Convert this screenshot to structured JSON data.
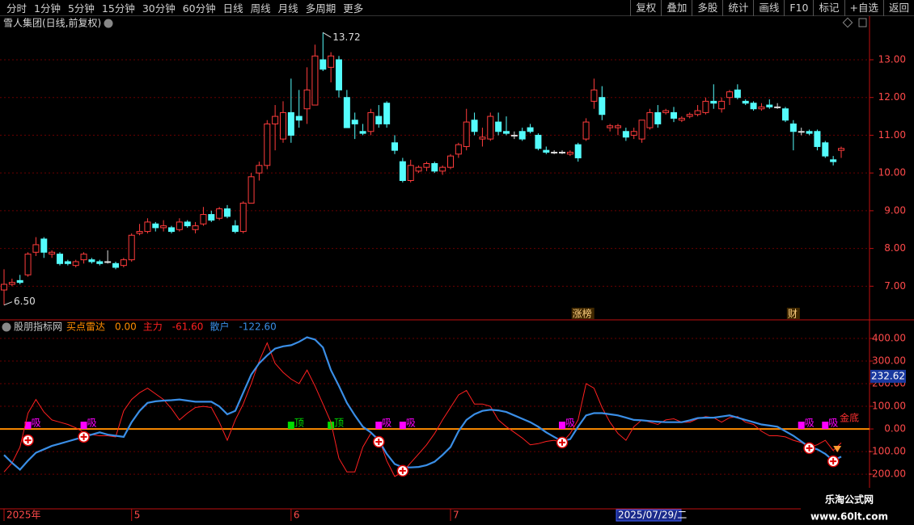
{
  "toolbar": {
    "left": [
      "分时",
      "1分钟",
      "5分钟",
      "15分钟",
      "30分钟",
      "60分钟",
      "日线",
      "周线",
      "月线",
      "多周期",
      "更多"
    ],
    "right": [
      "复权",
      "叠加",
      "多股",
      "统计",
      "画线",
      "F10",
      "标记",
      "+自选",
      "返回"
    ]
  },
  "watermark": {
    "title": "乐淘公式网",
    "url": "www.60lt.com"
  },
  "chart_data": [
    {
      "type": "candlestick",
      "title": "雪人集团(日线,前复权)",
      "up_color": "#ff3c3c",
      "down_color": "#54fcfc",
      "open": [
        6.9,
        7.05,
        7.15,
        7.3,
        7.9,
        8.25,
        7.85,
        7.85,
        7.65,
        7.55,
        7.7,
        7.7,
        7.65,
        7.65,
        7.6,
        7.55,
        7.7,
        8.4,
        8.45,
        8.65,
        8.55,
        8.55,
        8.5,
        8.7,
        8.5,
        8.65,
        8.9,
        8.8,
        9.05,
        8.6,
        8.45,
        9.2,
        10.0,
        10.2,
        11.3,
        10.9,
        11.6,
        11.5,
        11.7,
        11.8,
        13.0,
        12.8,
        13.0,
        12.0,
        11.4,
        11.1,
        11.1,
        11.5,
        11.85,
        10.8,
        10.3,
        9.8,
        10.05,
        10.15,
        10.25,
        10.05,
        10.15,
        10.5,
        10.7,
        11.4,
        10.9,
        10.9,
        11.35,
        11.1,
        11.0,
        11.1,
        11.2,
        11.0,
        10.6,
        10.55,
        10.55,
        10.5,
        10.75,
        10.9,
        11.9,
        12.0,
        11.2,
        11.2,
        11.1,
        11.0,
        10.9,
        11.2,
        11.6,
        11.6,
        11.6,
        11.4,
        11.5,
        11.55,
        11.6,
        11.9,
        11.7,
        12.0,
        12.2,
        11.9,
        11.85,
        11.7,
        11.8,
        11.75,
        11.7,
        11.3,
        11.1,
        11.1,
        11.1,
        10.8,
        10.35,
        10.6
      ],
      "high": [
        7.45,
        7.2,
        7.3,
        7.9,
        8.3,
        8.3,
        7.95,
        7.9,
        7.7,
        7.7,
        7.9,
        7.75,
        7.7,
        7.95,
        7.65,
        7.75,
        8.4,
        8.65,
        8.8,
        8.7,
        8.75,
        8.6,
        8.8,
        8.75,
        8.7,
        9.1,
        9.0,
        9.1,
        9.15,
        8.75,
        9.25,
        10.0,
        10.3,
        11.4,
        11.8,
        11.9,
        12.5,
        12.2,
        12.8,
        13.4,
        13.72,
        13.2,
        13.1,
        12.2,
        11.6,
        11.3,
        11.7,
        11.8,
        11.9,
        11.0,
        10.4,
        10.35,
        10.2,
        10.3,
        10.3,
        10.2,
        10.5,
        10.8,
        11.7,
        11.6,
        11.2,
        11.6,
        11.6,
        11.5,
        11.1,
        11.2,
        11.3,
        11.05,
        10.7,
        10.6,
        10.6,
        10.6,
        10.8,
        11.45,
        12.5,
        12.3,
        11.3,
        11.3,
        11.2,
        11.2,
        11.4,
        11.7,
        11.8,
        11.7,
        11.75,
        11.5,
        11.6,
        11.8,
        12.0,
        12.35,
        12.0,
        12.2,
        12.35,
        11.95,
        11.9,
        11.85,
        11.95,
        11.85,
        11.75,
        11.4,
        11.2,
        11.15,
        11.15,
        10.85,
        10.45,
        10.7
      ],
      "low": [
        6.5,
        7.0,
        7.05,
        7.25,
        7.8,
        7.75,
        7.75,
        7.55,
        7.55,
        7.5,
        7.6,
        7.6,
        7.55,
        7.6,
        7.45,
        7.5,
        7.65,
        8.35,
        8.4,
        8.45,
        8.45,
        8.4,
        8.45,
        8.55,
        8.4,
        8.6,
        8.7,
        8.75,
        8.8,
        8.4,
        8.4,
        9.2,
        9.8,
        10.1,
        10.6,
        10.8,
        10.8,
        11.2,
        11.3,
        11.8,
        12.7,
        12.4,
        12.0,
        11.2,
        10.9,
        11.0,
        11.0,
        11.2,
        11.2,
        10.5,
        9.75,
        9.75,
        10.0,
        10.05,
        10.0,
        9.95,
        10.1,
        10.4,
        10.6,
        11.0,
        10.7,
        10.85,
        11.0,
        11.0,
        10.9,
        10.85,
        11.05,
        10.6,
        10.5,
        10.5,
        10.5,
        10.45,
        10.3,
        10.85,
        11.7,
        11.4,
        11.1,
        11.0,
        10.85,
        10.9,
        10.8,
        11.15,
        11.2,
        11.55,
        11.35,
        11.35,
        11.45,
        11.5,
        11.55,
        11.7,
        11.6,
        11.8,
        11.95,
        11.8,
        11.65,
        11.65,
        11.7,
        11.7,
        11.35,
        10.6,
        11.0,
        11.0,
        10.6,
        10.4,
        10.2,
        10.4
      ],
      "close": [
        7.05,
        7.1,
        7.1,
        7.85,
        8.1,
        7.9,
        7.9,
        7.6,
        7.6,
        7.65,
        7.85,
        7.65,
        7.6,
        7.65,
        7.5,
        7.7,
        8.35,
        8.45,
        8.7,
        8.55,
        8.6,
        8.45,
        8.7,
        8.6,
        8.6,
        8.9,
        8.75,
        9.05,
        8.85,
        8.45,
        9.2,
        9.9,
        10.2,
        11.3,
        11.5,
        11.6,
        11.0,
        11.4,
        12.2,
        13.1,
        12.75,
        13.1,
        12.2,
        11.2,
        11.3,
        11.05,
        11.6,
        11.3,
        11.3,
        10.6,
        9.8,
        10.2,
        10.15,
        10.25,
        10.05,
        10.15,
        10.45,
        10.75,
        11.35,
        11.1,
        10.95,
        11.5,
        11.1,
        11.05,
        11.0,
        10.9,
        11.1,
        10.65,
        10.55,
        10.55,
        10.55,
        10.55,
        10.4,
        11.35,
        12.2,
        11.55,
        11.25,
        11.25,
        10.95,
        11.1,
        11.4,
        11.6,
        11.3,
        11.65,
        11.45,
        11.45,
        11.55,
        11.65,
        11.9,
        11.85,
        11.9,
        12.15,
        12.0,
        11.85,
        11.7,
        11.75,
        11.75,
        11.75,
        11.4,
        11.1,
        11.1,
        11.05,
        10.7,
        10.45,
        10.3,
        10.65
      ],
      "ylim": [
        6.13,
        13.77
      ],
      "yticks": [
        {
          "value": 7,
          "label": "7.00"
        },
        {
          "value": 8,
          "label": "8.00"
        },
        {
          "value": 9,
          "label": "9.00"
        },
        {
          "value": 10,
          "label": "10.00"
        },
        {
          "value": 11,
          "label": "11.00"
        },
        {
          "value": 12,
          "label": "12.00"
        },
        {
          "value": 13,
          "label": "13.00"
        }
      ],
      "grid": true,
      "annotations": [
        {
          "index": 40,
          "value": 13.72
        },
        {
          "index": 0,
          "value": 6.5,
          "label": "6.50"
        }
      ],
      "events": [
        {
          "index": 72,
          "label": "涨榜"
        },
        {
          "index": 99,
          "label": "财"
        }
      ]
    },
    {
      "type": "line",
      "title": "股朋指标网",
      "categories": [
        "2025年",
        null,
        null,
        null,
        null,
        null,
        null,
        null,
        null,
        null,
        null,
        null,
        null,
        null,
        null,
        null,
        "5",
        null,
        null,
        null,
        null,
        null,
        null,
        null,
        null,
        null,
        null,
        null,
        null,
        null,
        null,
        null,
        null,
        null,
        null,
        null,
        "6",
        null,
        null,
        null,
        null,
        null,
        null,
        null,
        null,
        null,
        null,
        null,
        null,
        null,
        null,
        null,
        null,
        null,
        null,
        null,
        "7",
        null,
        null,
        null,
        null,
        null,
        null,
        null,
        null,
        null,
        null,
        null,
        null,
        null,
        null,
        null,
        null,
        null,
        null,
        null,
        null,
        null,
        null,
        null,
        null,
        null,
        null,
        null,
        null,
        null,
        null,
        null,
        null,
        null,
        null,
        null,
        null,
        null,
        null,
        null,
        null,
        null,
        null,
        null,
        null,
        null,
        null,
        null,
        null,
        null
      ],
      "hline": {
        "name": "买点雷达",
        "value": 0,
        "label": "0.00",
        "color": "#ff8c00"
      },
      "series": [
        {
          "name": "主力",
          "color": "#ff2020",
          "value_label": "-61.60",
          "values": [
            -190,
            -150,
            -80,
            70,
            130,
            75,
            40,
            30,
            20,
            5,
            -15,
            -25,
            -30,
            -30,
            -35,
            80,
            130,
            160,
            180,
            155,
            130,
            90,
            40,
            70,
            95,
            100,
            95,
            30,
            -50,
            40,
            110,
            200,
            300,
            380,
            290,
            250,
            220,
            200,
            260,
            190,
            110,
            30,
            -130,
            -190,
            -190,
            -80,
            -20,
            -40,
            -140,
            -210,
            -190,
            -150,
            -110,
            -70,
            -20,
            40,
            95,
            150,
            170,
            110,
            110,
            100,
            40,
            10,
            -15,
            -40,
            -70,
            -65,
            -55,
            -50,
            -60,
            -20,
            40,
            200,
            180,
            95,
            30,
            -20,
            -50,
            10,
            40,
            30,
            20,
            40,
            45,
            30,
            30,
            45,
            55,
            50,
            30,
            50,
            55,
            30,
            20,
            -10,
            -30,
            -30,
            -35,
            -50,
            -60,
            -80,
            -70,
            -50,
            -95,
            -61.6
          ]
        },
        {
          "name": "散户",
          "color": "#3a8ee6",
          "value_label": "-122.60",
          "values": [
            -115,
            -150,
            -180,
            -140,
            -105,
            -90,
            -75,
            -65,
            -55,
            -45,
            -35,
            -25,
            -15,
            -25,
            -30,
            -35,
            30,
            80,
            115,
            122,
            125,
            127,
            130,
            125,
            120,
            120,
            120,
            100,
            65,
            80,
            160,
            240,
            290,
            325,
            355,
            365,
            370,
            385,
            405,
            395,
            360,
            260,
            190,
            115,
            60,
            10,
            -15,
            -50,
            -110,
            -155,
            -170,
            -170,
            -168,
            -160,
            -145,
            -115,
            -80,
            -10,
            40,
            65,
            80,
            85,
            82,
            75,
            60,
            45,
            30,
            10,
            -15,
            -35,
            -55,
            -45,
            10,
            60,
            70,
            70,
            65,
            60,
            50,
            40,
            38,
            35,
            32,
            30,
            30,
            30,
            38,
            48,
            50,
            50,
            55,
            60,
            50,
            40,
            30,
            20,
            15,
            10,
            -10,
            -30,
            -55,
            -80,
            -90,
            -110,
            -140,
            -122.6
          ]
        }
      ],
      "ylim": [
        -346,
        425
      ],
      "yticks": [
        {
          "value": -200,
          "label": "-200.00"
        },
        {
          "value": -100,
          "label": "-100.00"
        },
        {
          "value": 0,
          "label": "0.00"
        },
        {
          "value": 100,
          "label": "100.00"
        },
        {
          "value": 200,
          "label": "200.00"
        },
        {
          "value": 300,
          "label": "300.00"
        },
        {
          "value": 400,
          "label": "400.00"
        }
      ],
      "grid": true,
      "buy_points": [
        {
          "index": 3,
          "value": -50
        },
        {
          "index": 10,
          "value": -35
        },
        {
          "index": 47,
          "value": -57
        },
        {
          "index": 50,
          "value": -185
        },
        {
          "index": 70,
          "value": -60
        },
        {
          "index": 101,
          "value": -85
        },
        {
          "index": 104,
          "value": -143
        }
      ],
      "tags": [
        {
          "index": 3,
          "label": "吸",
          "color": "#ff00ff"
        },
        {
          "index": 10,
          "label": "吸",
          "color": "#ff00ff"
        },
        {
          "index": 36,
          "label": "顶",
          "color": "#00dd00"
        },
        {
          "index": 41,
          "label": "顶",
          "color": "#00dd00"
        },
        {
          "index": 47,
          "label": "吸",
          "color": "#ff00ff"
        },
        {
          "index": 50,
          "label": "吸",
          "color": "#ff00ff"
        },
        {
          "index": 70,
          "label": "吸",
          "color": "#ff00ff"
        },
        {
          "index": 100,
          "label": "吸",
          "color": "#ff00ff"
        },
        {
          "index": 103,
          "label": "吸",
          "color": "#ff00ff"
        }
      ],
      "bottom_signal": {
        "index": 104,
        "label": "金底"
      },
      "cursor": {
        "index": 77,
        "label": "2025/07/29/二",
        "value": 232.62
      }
    }
  ]
}
